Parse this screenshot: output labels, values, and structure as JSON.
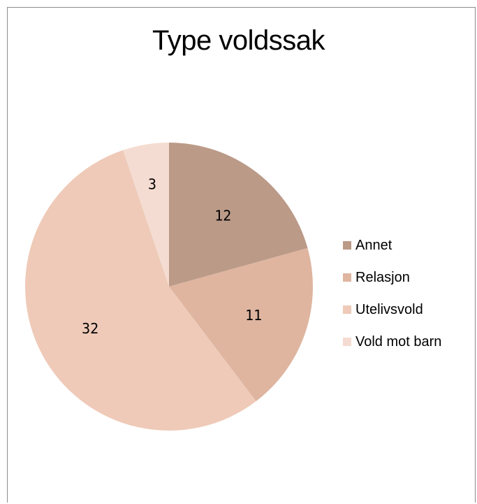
{
  "chart_data": {
    "type": "pie",
    "title": "Type voldssak",
    "categories": [
      "Annet",
      "Relasjon",
      "Utelivsvold",
      "Vold mot barn"
    ],
    "values": [
      12,
      11,
      32,
      3
    ],
    "colors": [
      "#bb9a88",
      "#dfb5a0",
      "#efcab8",
      "#f5dcd2"
    ],
    "legend_position": "right",
    "data_labels": [
      "12",
      "11",
      "32",
      "3"
    ]
  }
}
